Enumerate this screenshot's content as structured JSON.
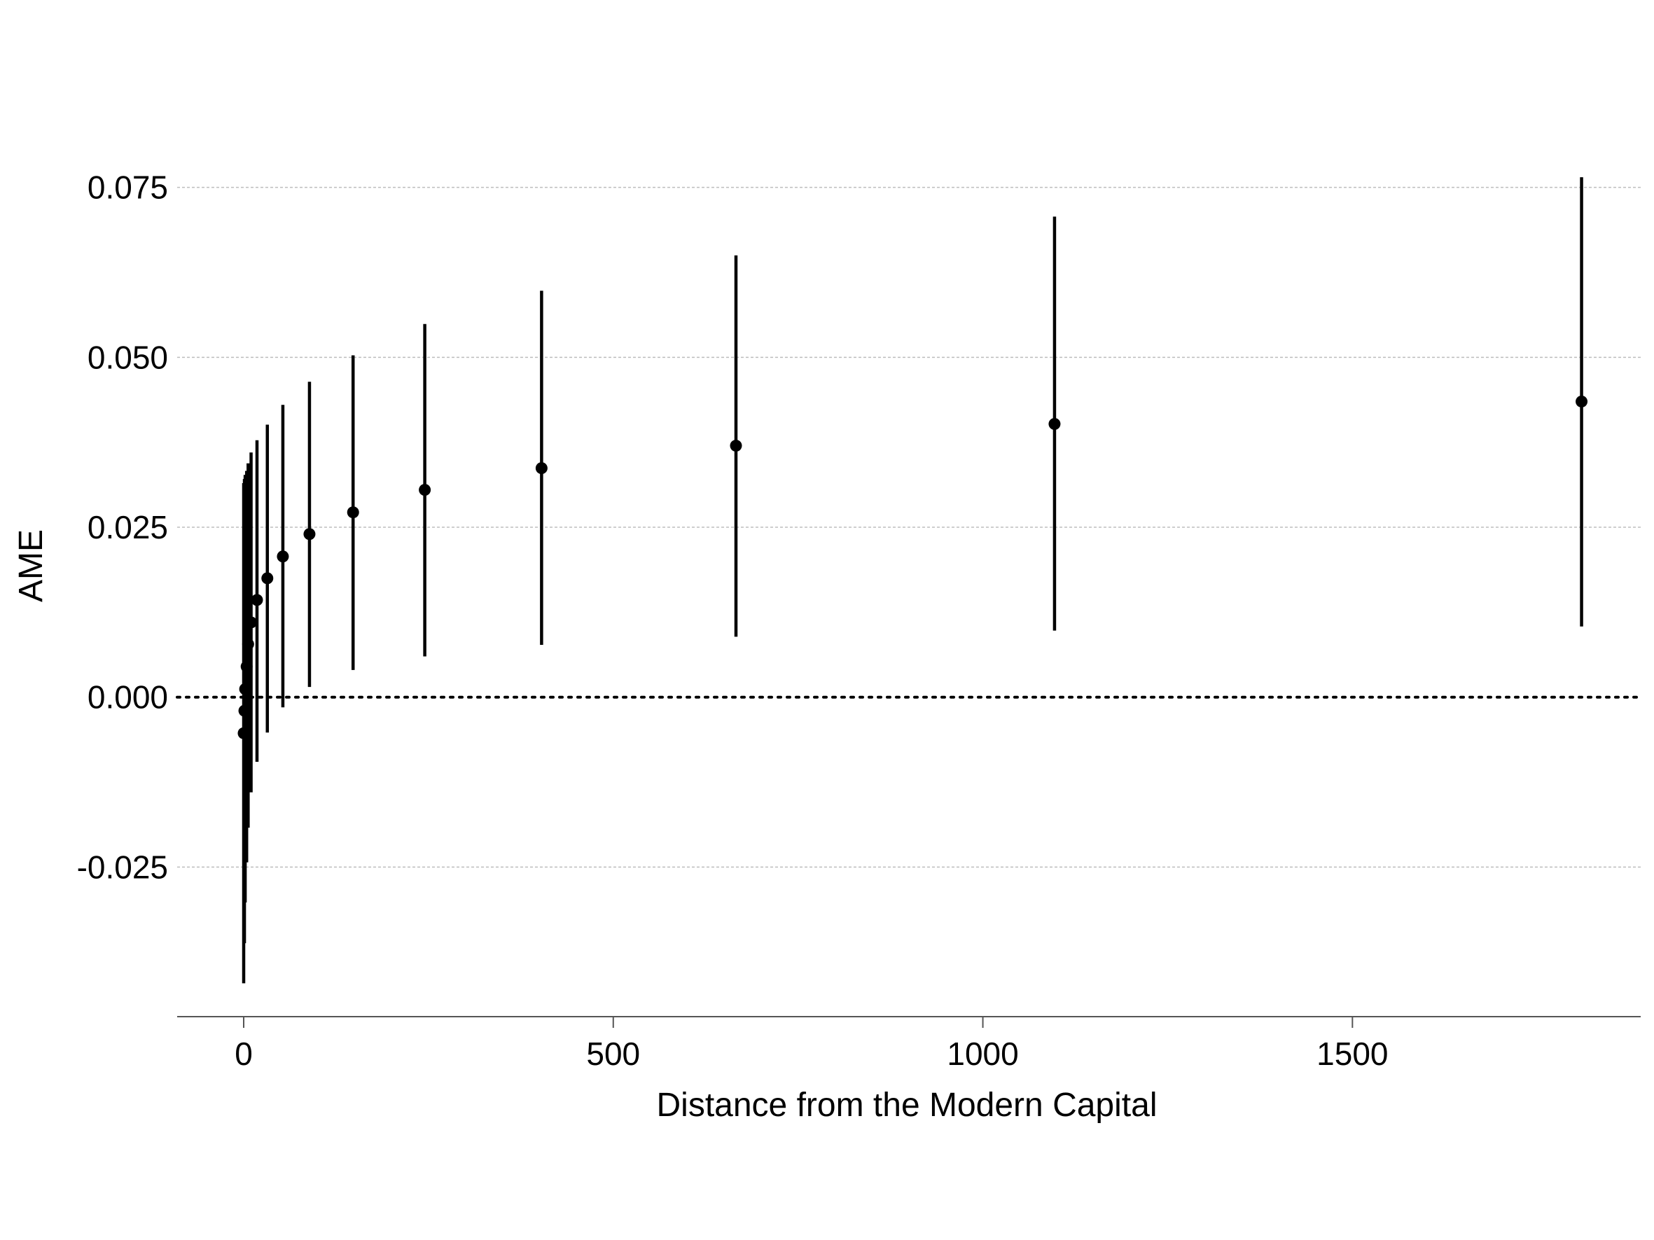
{
  "chart_data": {
    "type": "scatter",
    "title": "",
    "xlabel": "Distance from the Modern Capital",
    "ylabel": "AME",
    "xlim": [
      -90,
      1890
    ],
    "ylim": [
      -0.047,
      0.083
    ],
    "x_ticks": [
      0,
      500,
      1000,
      1500
    ],
    "x_tick_labels": [
      "0",
      "500",
      "1000",
      "1500"
    ],
    "y_ticks": [
      -0.025,
      0.0,
      0.025,
      0.05,
      0.075
    ],
    "y_tick_labels": [
      "-0.025",
      "0.000",
      "0.025",
      "0.050",
      "0.075"
    ],
    "grid": "horizontal dotted",
    "reference_line": {
      "y": 0.0,
      "style": "dotted"
    },
    "series": [
      {
        "points": [
          {
            "x": 0,
            "y": -0.0053,
            "lo": -0.0421,
            "hi": 0.0315
          },
          {
            "x": 1,
            "y": -0.002,
            "lo": -0.0362,
            "hi": 0.0321
          },
          {
            "x": 2,
            "y": 0.0012,
            "lo": -0.0302,
            "hi": 0.0327
          },
          {
            "x": 4,
            "y": 0.0045,
            "lo": -0.0243,
            "hi": 0.0333
          },
          {
            "x": 6,
            "y": 0.0078,
            "lo": -0.0192,
            "hi": 0.0344
          },
          {
            "x": 10,
            "y": 0.011,
            "lo": -0.014,
            "hi": 0.036
          },
          {
            "x": 18,
            "y": 0.0143,
            "lo": -0.0095,
            "hi": 0.0378
          },
          {
            "x": 32,
            "y": 0.0175,
            "lo": -0.0052,
            "hi": 0.0401
          },
          {
            "x": 53,
            "y": 0.0207,
            "lo": -0.0015,
            "hi": 0.043
          },
          {
            "x": 89,
            "y": 0.024,
            "lo": 0.0015,
            "hi": 0.0464
          },
          {
            "x": 148,
            "y": 0.0272,
            "lo": 0.004,
            "hi": 0.0503
          },
          {
            "x": 245,
            "y": 0.0305,
            "lo": 0.006,
            "hi": 0.0549
          },
          {
            "x": 403,
            "y": 0.0337,
            "lo": 0.0077,
            "hi": 0.0598
          },
          {
            "x": 666,
            "y": 0.037,
            "lo": 0.0089,
            "hi": 0.065
          },
          {
            "x": 1097,
            "y": 0.0402,
            "lo": 0.0098,
            "hi": 0.0707
          },
          {
            "x": 1810,
            "y": 0.0435,
            "lo": 0.0104,
            "hi": 0.0765
          }
        ]
      }
    ]
  }
}
